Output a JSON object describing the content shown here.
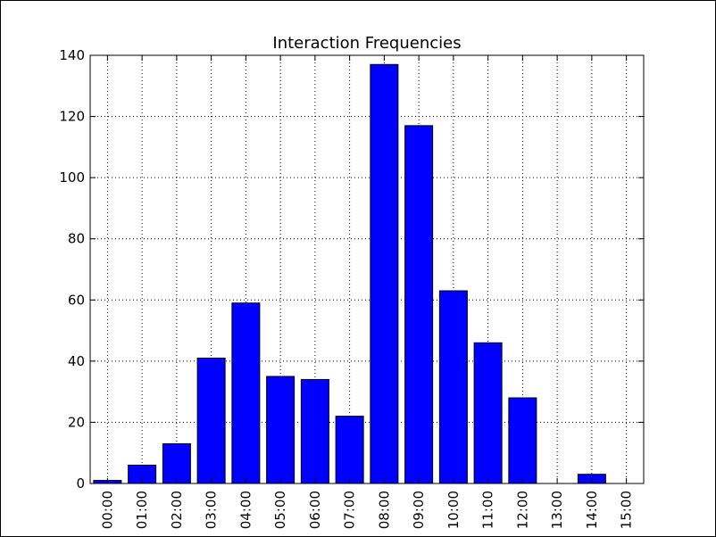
{
  "chart_data": {
    "type": "bar",
    "title": "Interaction Frequencies",
    "xlabel": "",
    "ylabel": "",
    "categories": [
      "00:00",
      "01:00",
      "02:00",
      "03:00",
      "04:00",
      "05:00",
      "06:00",
      "07:00",
      "08:00",
      "09:00",
      "10:00",
      "11:00",
      "12:00",
      "13:00",
      "14:00",
      "15:00"
    ],
    "values": [
      1,
      6,
      13,
      41,
      59,
      35,
      34,
      22,
      137,
      117,
      63,
      46,
      28,
      0,
      3,
      0
    ],
    "ylim": [
      0,
      140
    ],
    "yticks": [
      0,
      20,
      40,
      60,
      80,
      100,
      120,
      140
    ],
    "grid": true,
    "bar_color": "#0000ff",
    "legend": "none"
  }
}
